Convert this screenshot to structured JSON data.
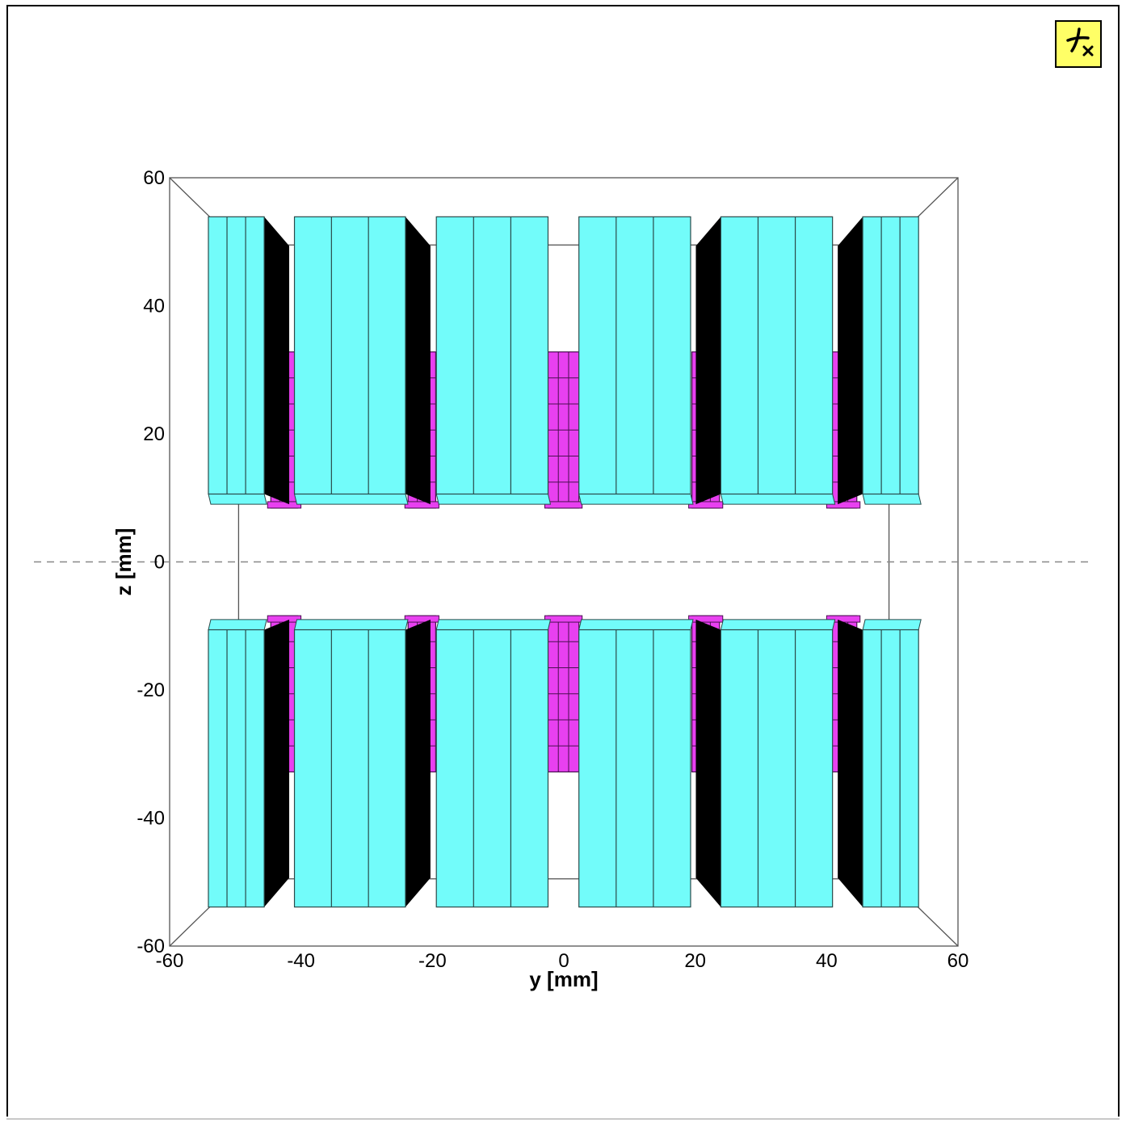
{
  "toolbar": {
    "view_button_icon": "axis-orientation-icon",
    "view_button_colors": {
      "background": "#ffff66",
      "glyph": "#000000"
    }
  },
  "chart_data": {
    "type": "diagram",
    "xlabel": "y [mm]",
    "ylabel": "z [mm]",
    "xlim": [
      -60,
      60
    ],
    "ylim": [
      -60,
      60
    ],
    "xticks": [
      "-60",
      "-40",
      "-20",
      "0",
      "20",
      "40",
      "60"
    ],
    "yticks": [
      "60",
      "40",
      "20",
      "0",
      "-20",
      "-40",
      "-60"
    ],
    "colors": {
      "magnet_block": "#72fcfa",
      "spacer_block": "#e840f0",
      "shadow": "#000000",
      "outline": "#2a4a4a",
      "midplane": "#888888"
    },
    "midplane_z": 0,
    "outer_blocks": [
      {
        "y0": -54.1,
        "y1": -45.6,
        "z0": 10.6,
        "z1": 53.9,
        "slices": 3,
        "shadow": "right"
      },
      {
        "y0": -41.0,
        "y1": -24.1,
        "z0": 10.6,
        "z1": 53.9,
        "slices": 3,
        "shadow": "right"
      },
      {
        "y0": -19.4,
        "y1": -2.4,
        "z0": 10.6,
        "z1": 53.9,
        "slices": 3,
        "shadow": "none"
      },
      {
        "y0": 2.3,
        "y1": 19.3,
        "z0": 10.6,
        "z1": 53.9,
        "slices": 3,
        "shadow": "none"
      },
      {
        "y0": 23.9,
        "y1": 40.9,
        "z0": 10.6,
        "z1": 53.9,
        "slices": 3,
        "shadow": "left"
      },
      {
        "y0": 45.5,
        "y1": 54.0,
        "z0": 10.6,
        "z1": 53.9,
        "slices": 3,
        "shadow": "left"
      }
    ],
    "spacer_blocks": [
      {
        "y0": -44.6,
        "y1": -40.5,
        "z0": 8.4,
        "z1": 32.8
      },
      {
        "y0": -23.7,
        "y1": -19.5,
        "z0": 8.4,
        "z1": 32.8
      },
      {
        "y0": -2.4,
        "y1": 2.3,
        "z0": 8.4,
        "z1": 32.8
      },
      {
        "y0": 19.5,
        "y1": 23.7,
        "z0": 8.4,
        "z1": 32.8
      },
      {
        "y0": 40.5,
        "y1": 44.6,
        "z0": 8.4,
        "z1": 32.8
      }
    ],
    "mirror_about_z0": true,
    "bounding_box": {
      "outer_y": [
        -60,
        60
      ],
      "outer_z": [
        -60,
        60
      ],
      "inner_y": [
        -49.5,
        49.5
      ],
      "inner_z": [
        -49.5,
        49.5
      ]
    }
  }
}
